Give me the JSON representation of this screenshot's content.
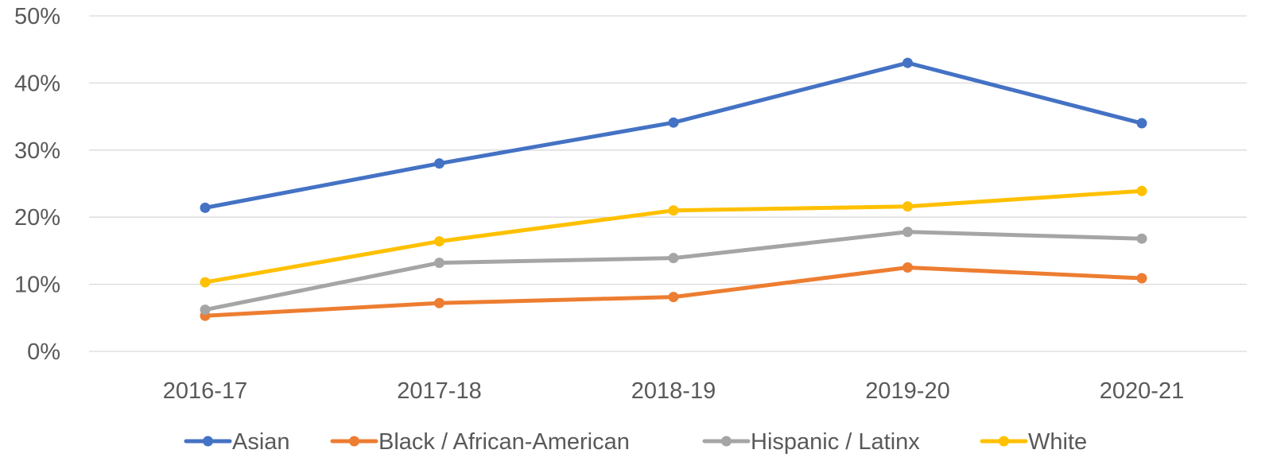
{
  "chart_data": {
    "type": "line",
    "title": "",
    "xlabel": "",
    "ylabel": "",
    "categories": [
      "2016-17",
      "2017-18",
      "2018-19",
      "2019-20",
      "2020-21"
    ],
    "ylim": [
      0,
      50
    ],
    "y_ticks": [
      "0%",
      "10%",
      "20%",
      "30%",
      "40%",
      "50%"
    ],
    "y_tick_values": [
      0,
      10,
      20,
      30,
      40,
      50
    ],
    "grid": true,
    "legend_position": "bottom",
    "markers": true,
    "series": [
      {
        "name": "Asian",
        "color": "#4472c4",
        "values": [
          21.4,
          28.0,
          34.1,
          43.0,
          34.0
        ]
      },
      {
        "name": "Black / African-American",
        "color": "#ed7d31",
        "values": [
          5.3,
          7.2,
          8.1,
          12.5,
          10.9
        ]
      },
      {
        "name": "Hispanic / Latinx",
        "color": "#a5a5a5",
        "values": [
          6.2,
          13.2,
          13.9,
          17.8,
          16.8
        ]
      },
      {
        "name": "White",
        "color": "#ffc000",
        "values": [
          10.3,
          16.4,
          21.0,
          21.6,
          23.9
        ]
      }
    ]
  }
}
